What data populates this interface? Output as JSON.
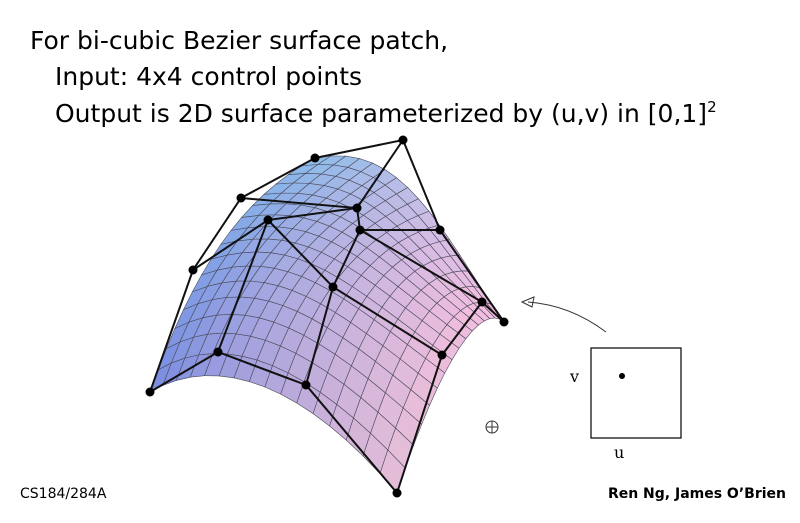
{
  "slide": {
    "title": "For bi-cubic Bezier surface patch,",
    "lines": [
      "Input: 4x4 control points",
      "Output is 2D surface parameterized by (u,v) in [0,1]"
    ],
    "superscript": "2",
    "domain_labels": {
      "v": "v",
      "u": "u"
    },
    "footer_left": "CS184/284A",
    "footer_right": "Ren Ng, James O’Brien"
  }
}
